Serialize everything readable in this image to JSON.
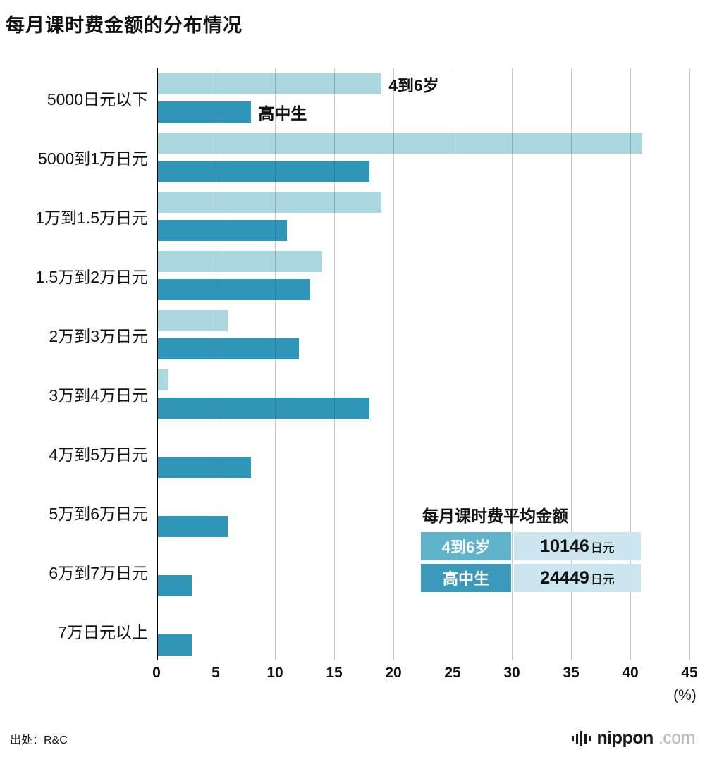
{
  "title": "每月课时费金额的分布情况",
  "source": "出处：R&C",
  "logo": {
    "name": "nippon",
    "suffix": ".com"
  },
  "chart_data": {
    "type": "bar",
    "orientation": "horizontal",
    "title": "每月课时费金额的分布情况",
    "categories": [
      "5000日元以下",
      "5000到1万日元",
      "1万到1.5万日元",
      "1.5万到2万日元",
      "2万到3万日元",
      "3万到4万日元",
      "4万到5万日元",
      "5万到6万日元",
      "6万到7万日元",
      "7万日元以上"
    ],
    "series": [
      {
        "name": "4到6岁",
        "color": "#aad7e0",
        "values": [
          19,
          41,
          19,
          14,
          6,
          1,
          0,
          0,
          0,
          0
        ]
      },
      {
        "name": "高中生",
        "color": "#2f96ba",
        "values": [
          8,
          18,
          11,
          13,
          12,
          18,
          8,
          6,
          3,
          3
        ]
      }
    ],
    "xlim": [
      0,
      45
    ],
    "xticks": [
      0,
      5,
      10,
      15,
      20,
      25,
      30,
      35,
      40,
      45
    ],
    "x_unit": "(%)",
    "grid": true,
    "legend_position": "on-first-bars"
  },
  "avg_table": {
    "title": "每月课时费平均金额",
    "value_bg": "#cbe6ee",
    "rows": [
      {
        "label": "4到6岁",
        "value": "10146",
        "unit": "日元",
        "label_bg": "#5fb3cb"
      },
      {
        "label": "高中生",
        "value": "24449",
        "unit": "日元",
        "label_bg": "#3b99bc"
      }
    ]
  }
}
